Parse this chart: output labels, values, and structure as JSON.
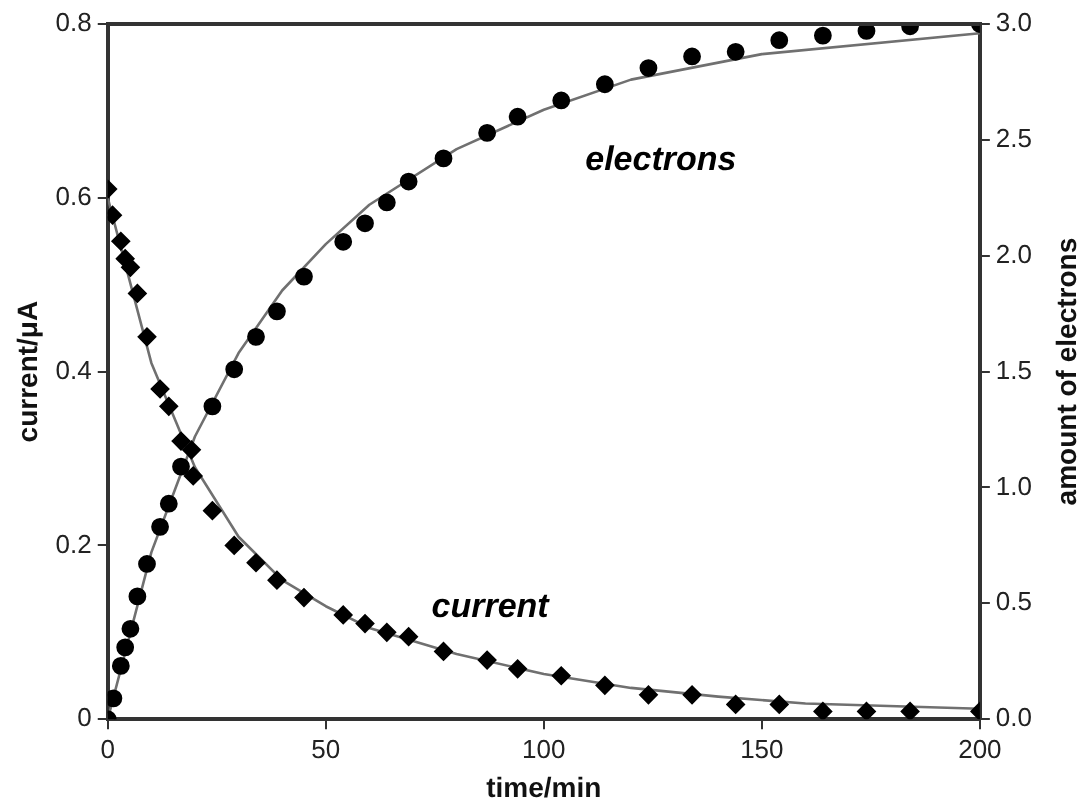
{
  "chart_data": {
    "type": "scatter",
    "xlabel": "time/min",
    "ylabel": "current/μA",
    "y2label": "amount of electrons",
    "xlim": [
      0,
      200
    ],
    "xticks": [
      0,
      50,
      100,
      150,
      200
    ],
    "ylim": [
      0,
      0.8
    ],
    "yticks": [
      0,
      0.2,
      0.4,
      0.6,
      0.8
    ],
    "y2lim": [
      0,
      3
    ],
    "y2ticks": [
      {
        "value": 0,
        "label": "0.0"
      },
      {
        "value": 0.5,
        "label": "0.5"
      },
      {
        "value": 1,
        "label": "1.0"
      },
      {
        "value": 1.5,
        "label": "1.5"
      },
      {
        "value": 2,
        "label": "2.0"
      },
      {
        "value": 2.5,
        "label": "2.5"
      },
      {
        "value": 3,
        "label": "3.0"
      }
    ],
    "grid": false,
    "legend": false,
    "series": [
      {
        "name": "electrons",
        "axis": "y2",
        "marker": "circle",
        "color": "#000000",
        "x": [
          0,
          1.3,
          3,
          4,
          5.2,
          6.8,
          9,
          12,
          14,
          16.8,
          24,
          29,
          34,
          38.8,
          45,
          54,
          59,
          64,
          69,
          77,
          87,
          94,
          104,
          114,
          124,
          134,
          144,
          154,
          164,
          174,
          184,
          200
        ],
        "values": [
          0,
          0.09,
          0.23,
          0.31,
          0.39,
          0.53,
          0.67,
          0.83,
          0.93,
          1.09,
          1.35,
          1.51,
          1.65,
          1.76,
          1.91,
          2.06,
          2.14,
          2.23,
          2.32,
          2.42,
          2.53,
          2.6,
          2.67,
          2.74,
          2.81,
          2.86,
          2.88,
          2.93,
          2.95,
          2.97,
          2.99,
          3.0
        ]
      },
      {
        "name": "current",
        "axis": "y",
        "marker": "diamond",
        "color": "#000000",
        "x": [
          0,
          1.1,
          3,
          4,
          5.2,
          6.8,
          9,
          12,
          14,
          16.8,
          19.2,
          19.6,
          24,
          29,
          34,
          38.8,
          45,
          54,
          59,
          64,
          69,
          77,
          87,
          94,
          104,
          114,
          124,
          134,
          144,
          154,
          164,
          174,
          184,
          200
        ],
        "values": [
          0.61,
          0.58,
          0.55,
          0.53,
          0.52,
          0.49,
          0.44,
          0.38,
          0.36,
          0.32,
          0.31,
          0.28,
          0.24,
          0.2,
          0.18,
          0.16,
          0.14,
          0.12,
          0.11,
          0.1,
          0.095,
          0.078,
          0.068,
          0.058,
          0.05,
          0.039,
          0.028,
          0.028,
          0.017,
          0.017,
          0.009,
          0.009,
          0.009,
          0.009
        ]
      },
      {
        "type": "line",
        "axis": "y2",
        "marker": "none",
        "color": "#707070",
        "x": [
          0,
          10,
          20,
          30,
          40,
          50,
          60,
          80,
          100,
          120,
          150,
          200
        ],
        "values": [
          0,
          0.72,
          1.22,
          1.58,
          1.85,
          2.05,
          2.22,
          2.46,
          2.63,
          2.76,
          2.87,
          2.96
        ]
      },
      {
        "type": "line",
        "axis": "y",
        "marker": "none",
        "color": "#707070",
        "x": [
          0,
          10,
          20,
          30,
          40,
          50,
          60,
          80,
          100,
          120,
          140,
          160,
          200
        ],
        "values": [
          0.6,
          0.41,
          0.29,
          0.21,
          0.16,
          0.13,
          0.105,
          0.075,
          0.052,
          0.036,
          0.026,
          0.018,
          0.012
        ]
      }
    ]
  }
}
